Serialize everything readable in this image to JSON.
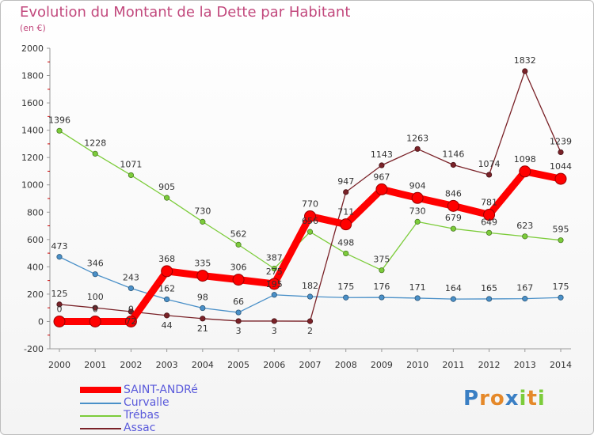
{
  "title": "Evolution du Montant de la Dette par Habitant",
  "subtitle": "(en €)",
  "logo_text": "Proxiti",
  "chart_data": {
    "type": "line",
    "title": "Evolution du Montant de la Dette par Habitant",
    "subtitle": "(en €)",
    "xlabel": "",
    "ylabel": "",
    "x": [
      "2000",
      "2001",
      "2002",
      "2003",
      "2004",
      "2005",
      "2006",
      "2007",
      "2008",
      "2009",
      "2010",
      "2011",
      "2012",
      "2013",
      "2014"
    ],
    "ylim": [
      -200,
      2000
    ],
    "yticks": [
      -200,
      0,
      200,
      400,
      600,
      800,
      1000,
      1200,
      1400,
      1600,
      1800,
      2000
    ],
    "grid": false,
    "legend_position": "bottom-left",
    "series": [
      {
        "name": "SAINT-ANDRé",
        "color": "#ff0000",
        "values": [
          0,
          0,
          0,
          368,
          335,
          306,
          275,
          770,
          711,
          967,
          904,
          846,
          781,
          1098,
          1044
        ]
      },
      {
        "name": "Curvalle",
        "color": "#4a90c8",
        "values": [
          473,
          346,
          243,
          162,
          98,
          66,
          195,
          182,
          175,
          176,
          171,
          164,
          165,
          167,
          175
        ]
      },
      {
        "name": "Trébas",
        "color": "#7ccc3a",
        "values": [
          1396,
          1228,
          1071,
          905,
          730,
          562,
          387,
          656,
          498,
          375,
          730,
          679,
          649,
          623,
          595
        ]
      },
      {
        "name": "Assac",
        "color": "#7a2228",
        "values": [
          125,
          100,
          72,
          44,
          21,
          3,
          3,
          2,
          947,
          1143,
          1263,
          1146,
          1074,
          1832,
          1239
        ]
      }
    ]
  }
}
